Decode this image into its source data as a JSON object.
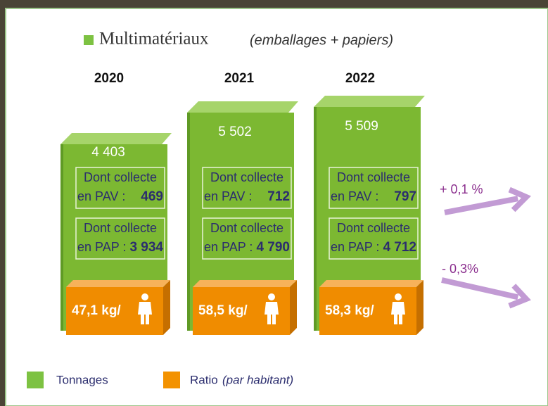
{
  "header": {
    "title": "Multimatériaux",
    "subtitle": "(emballages + papiers)"
  },
  "columns": [
    {
      "year": "2020",
      "tonnage": "4 403",
      "pav_label": "Dont collecte",
      "pav_label2": "en PAV :",
      "pav_value": "469",
      "pap_label": "Dont collecte",
      "pap_label2": "en PAP :",
      "pap_value": "3 934",
      "ratio": "47,1 kg/"
    },
    {
      "year": "2021",
      "tonnage": "5 502",
      "pav_label": "Dont collecte",
      "pav_label2": "en PAV :",
      "pav_value": "712",
      "pap_label": "Dont collecte",
      "pap_label2": "en PAP :",
      "pap_value": "4 790",
      "ratio": "58,5 kg/"
    },
    {
      "year": "2022",
      "tonnage": "5 509",
      "pav_label": "Dont collecte",
      "pav_label2": "en PAV :",
      "pav_value": "797",
      "pap_label": "Dont collecte",
      "pap_label2": "en PAP :",
      "pap_value": "4 712",
      "ratio": "58,3 kg/"
    }
  ],
  "trends": [
    "+ 0,1 %",
    "- 0,3%"
  ],
  "legend": {
    "tonnages": "Tonnages",
    "ratio": "Ratio",
    "ratio_note": "(par habitant)"
  }
}
